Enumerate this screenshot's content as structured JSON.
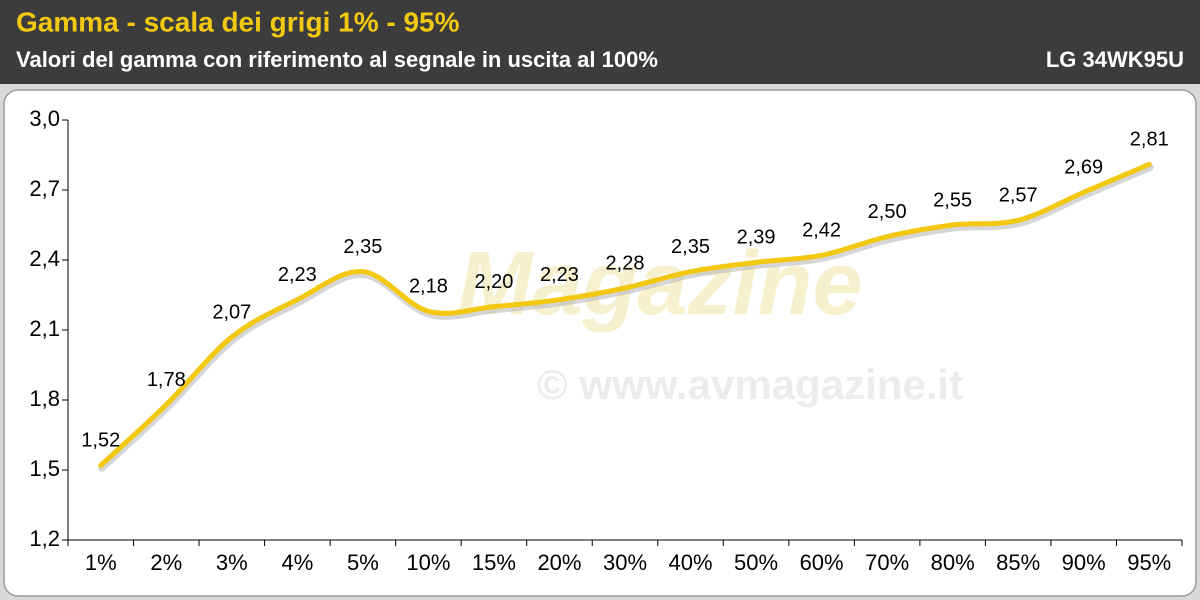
{
  "chart_data": {
    "type": "line",
    "title": "Gamma - scala dei grigi 1% - 95%",
    "subtitle": "Valori del gamma con riferimento al segnale in uscita al 100%",
    "model": "LG 34WK95U",
    "watermark": "© www.avmagazine.it",
    "watermark_logo": "Magazine",
    "categories": [
      "1%",
      "2%",
      "3%",
      "4%",
      "5%",
      "10%",
      "15%",
      "20%",
      "30%",
      "40%",
      "50%",
      "60%",
      "70%",
      "80%",
      "85%",
      "90%",
      "95%"
    ],
    "values": [
      1.52,
      1.78,
      2.07,
      2.23,
      2.35,
      2.18,
      2.2,
      2.23,
      2.28,
      2.35,
      2.39,
      2.42,
      2.5,
      2.55,
      2.57,
      2.69,
      2.81
    ],
    "value_labels": [
      "1,52",
      "1,78",
      "2,07",
      "2,23",
      "2,35",
      "2,18",
      "2,20",
      "2,23",
      "2,28",
      "2,35",
      "2,39",
      "2,42",
      "2,50",
      "2,55",
      "2,57",
      "2,69",
      "2,81"
    ],
    "color": "#f2c811",
    "ylim": [
      1.2,
      3.0
    ],
    "yticks": [
      {
        "value": 1.2,
        "label": "1,2"
      },
      {
        "value": 1.5,
        "label": "1,5"
      },
      {
        "value": 1.8,
        "label": "1,8"
      },
      {
        "value": 2.1,
        "label": "2,1"
      },
      {
        "value": 2.4,
        "label": "2,4"
      },
      {
        "value": 2.7,
        "label": "2,7"
      },
      {
        "value": 3.0,
        "label": "3,0"
      }
    ]
  }
}
